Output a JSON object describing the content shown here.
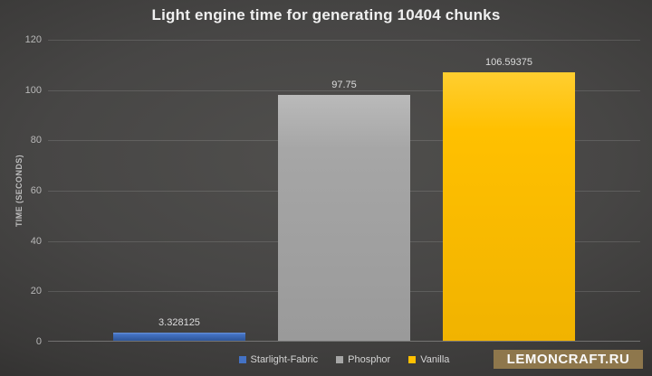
{
  "chart_data": {
    "type": "bar",
    "title": "Light engine time for generating 10404 chunks",
    "categories": [
      "Starlight-Fabric",
      "Phosphor",
      "Vanilla"
    ],
    "values": [
      3.328125,
      97.75,
      106.59375
    ],
    "value_labels": [
      "3.328125",
      "97.75",
      "106.59375"
    ],
    "bar_colors": [
      "#4472c4",
      "#a6a6a6",
      "#ffc000"
    ],
    "bar_gradients": [
      [
        "#6a94d8",
        "#4472c4",
        "#2d5597"
      ],
      [
        "#bababa",
        "#a6a6a6",
        "#9a9a9a"
      ],
      [
        "#ffce30",
        "#ffc000",
        "#f1b300"
      ]
    ],
    "xlabel": "",
    "ylabel": "TIME (SECONDS)",
    "ylim": [
      0,
      120
    ],
    "yticks": [
      0,
      20,
      40,
      60,
      80,
      100,
      120
    ],
    "grid": true,
    "legend_position": "bottom",
    "legend_entries": [
      "Starlight-Fabric",
      "Phosphor",
      "Vanilla"
    ]
  },
  "watermark": {
    "label": "LEMONCRAFT.RU",
    "background_color": "#8e774c",
    "text_color": "#fafafa"
  },
  "colors": {
    "background_center": "#4f4e4c",
    "background_edge": "#212020",
    "title_text": "#f0f0f0",
    "axis_text": "#b8b8b8",
    "data_label_text": "#dcdcdc",
    "gridline": "rgba(255,255,255,0.13)"
  }
}
